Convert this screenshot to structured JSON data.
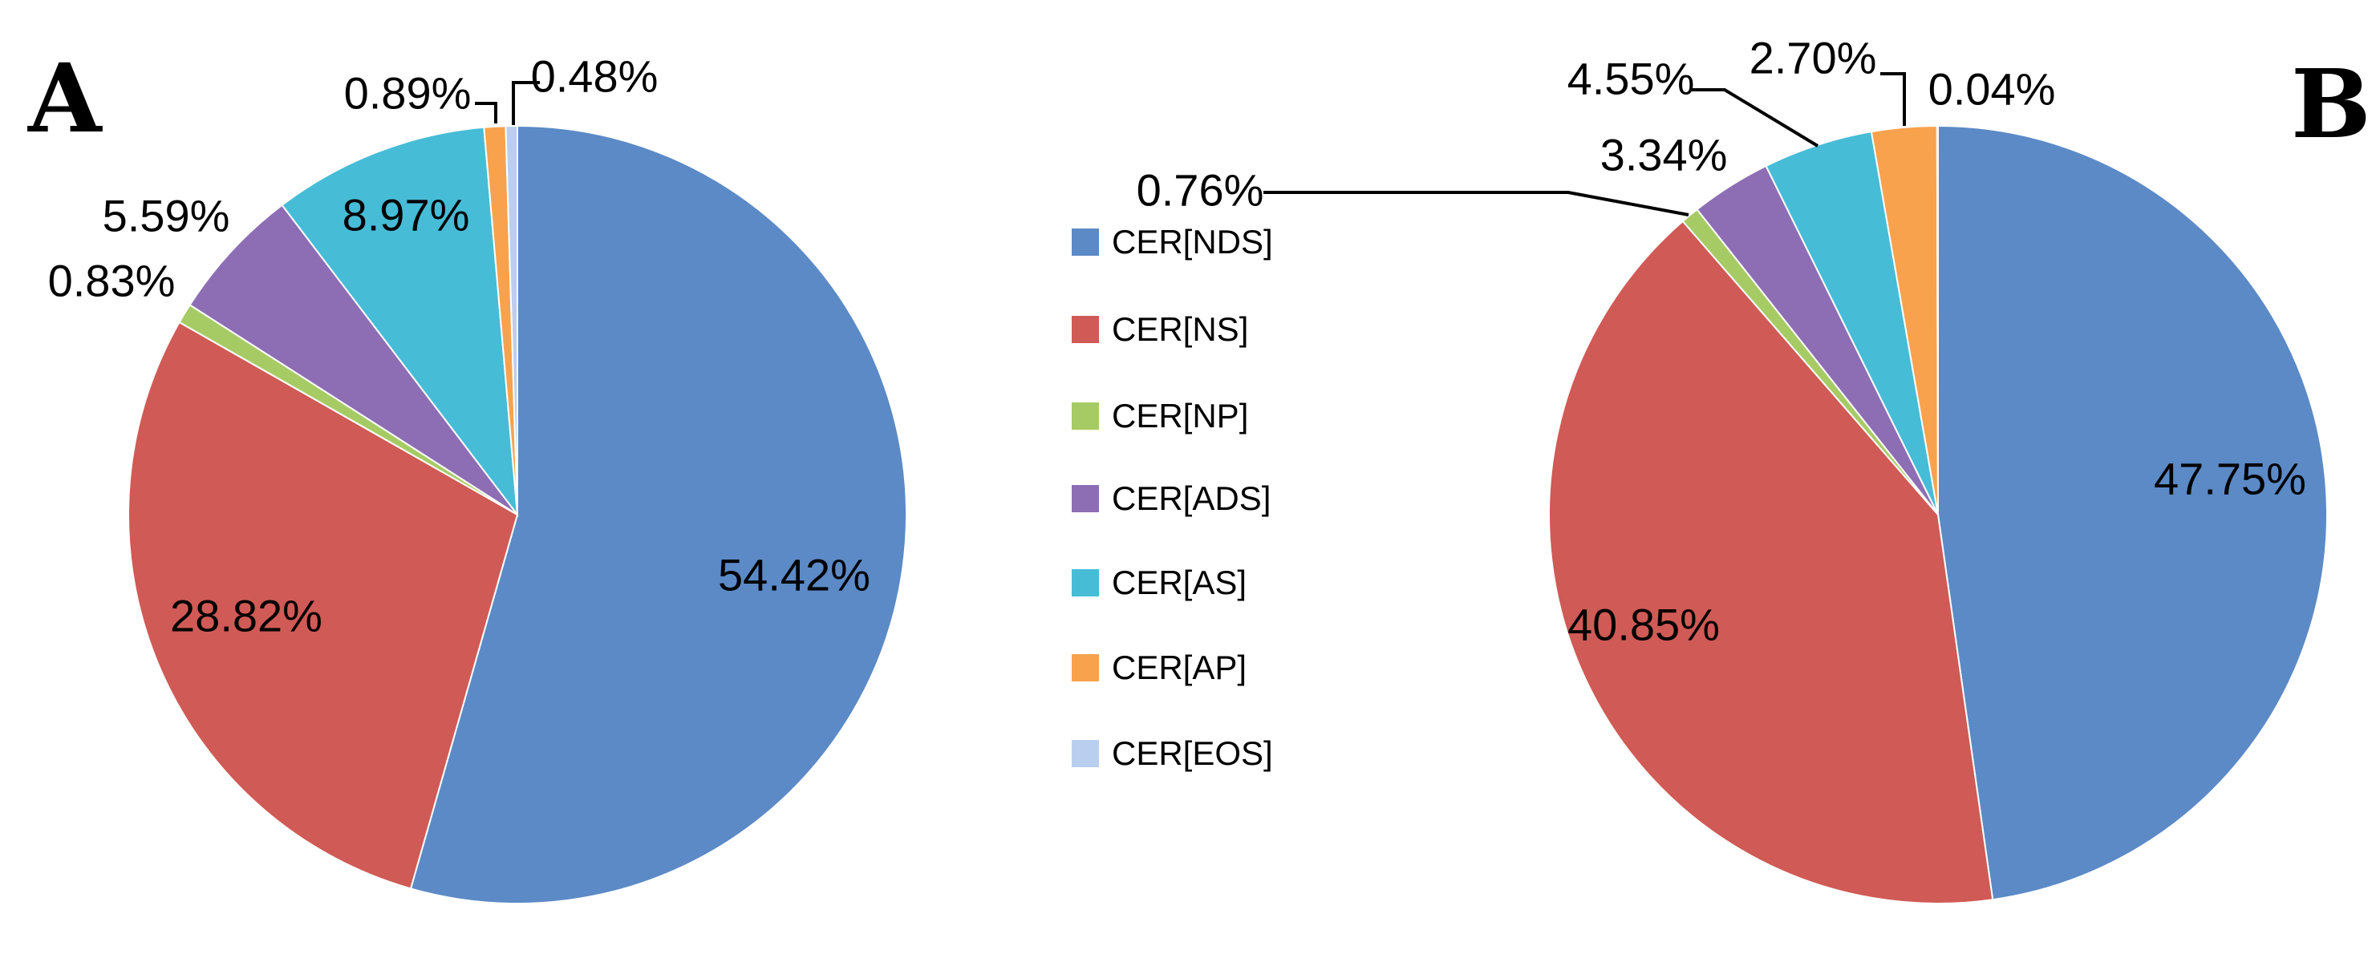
{
  "figure": {
    "panels": [
      {
        "label": "A"
      },
      {
        "label": "B"
      }
    ]
  },
  "legend": {
    "items": [
      {
        "label": "CER[NDS]",
        "color": "#5B8AC6"
      },
      {
        "label": "CER[NS]",
        "color": "#D05A55"
      },
      {
        "label": "CER[NP]",
        "color": "#A6CB65"
      },
      {
        "label": "CER[ADS]",
        "color": "#8D6EB4"
      },
      {
        "label": "CER[AS]",
        "color": "#46BCD7"
      },
      {
        "label": "CER[AP]",
        "color": "#F8A24E"
      },
      {
        "label": "CER[EOS]",
        "color": "#BACFEF"
      }
    ]
  },
  "chart_data": [
    {
      "type": "pie",
      "panel": "A",
      "categories": [
        "CER[NDS]",
        "CER[NS]",
        "CER[NP]",
        "CER[ADS]",
        "CER[AS]",
        "CER[AP]",
        "CER[EOS]"
      ],
      "values": [
        54.42,
        28.82,
        0.83,
        5.59,
        8.97,
        0.89,
        0.48
      ],
      "labels": [
        "54.42%",
        "28.82%",
        "0.83%",
        "5.59%",
        "8.97%",
        "0.89%",
        "0.48%"
      ],
      "colors": [
        "#5B8AC6",
        "#D05A55",
        "#A6CB65",
        "#8D6EB4",
        "#46BCD7",
        "#F8A24E",
        "#BACFEF"
      ],
      "start_angle_deg": 0,
      "direction": "clockwise",
      "grid": false,
      "legend_position": "center-between-panels"
    },
    {
      "type": "pie",
      "panel": "B",
      "categories": [
        "CER[NDS]",
        "CER[NS]",
        "CER[NP]",
        "CER[ADS]",
        "CER[AS]",
        "CER[AP]",
        "CER[EOS]"
      ],
      "values": [
        47.75,
        40.85,
        0.76,
        3.34,
        4.55,
        2.7,
        0.04
      ],
      "labels": [
        "47.75%",
        "40.85%",
        "0.76%",
        "3.34%",
        "4.55%",
        "2.70%",
        "0.04%"
      ],
      "colors": [
        "#5B8AC6",
        "#D05A55",
        "#A6CB65",
        "#8D6EB4",
        "#46BCD7",
        "#F8A24E",
        "#BACFEF"
      ],
      "start_angle_deg": 0,
      "direction": "clockwise",
      "grid": false,
      "legend_position": "center-between-panels"
    }
  ]
}
